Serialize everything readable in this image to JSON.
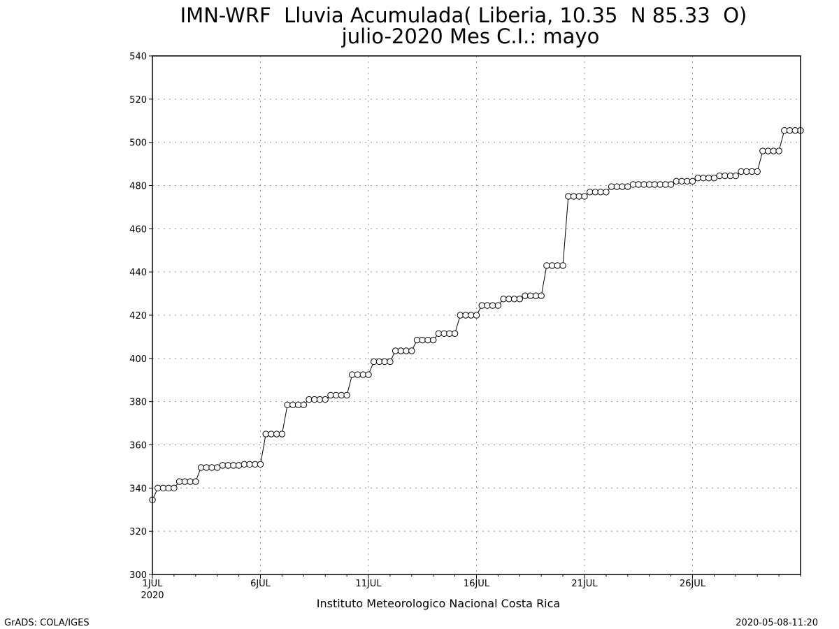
{
  "chart_data": {
    "type": "line",
    "title": "IMN-WRF  Lluvia Acumulada( Liberia, 10.35  N 85.33  O)",
    "subtitle": "julio-2020 Mes C.I.: mayo",
    "xlabel": "Instituto Meteorologico Nacional Costa Rica",
    "ylabel": "",
    "ylim": [
      300,
      540
    ],
    "yticks": [
      300,
      320,
      340,
      360,
      380,
      400,
      420,
      440,
      460,
      480,
      500,
      520,
      540
    ],
    "xlim": [
      1,
      31
    ],
    "xticks": [
      {
        "day": 1,
        "label": "1JUL",
        "sublabel": "2020"
      },
      {
        "day": 6,
        "label": "6JUL"
      },
      {
        "day": 11,
        "label": "11JUL"
      },
      {
        "day": 16,
        "label": "16JUL"
      },
      {
        "day": 21,
        "label": "21JUL"
      },
      {
        "day": 26,
        "label": "26JUL"
      }
    ],
    "grid": true,
    "marker": "open-circle",
    "x_unit": "days of July 2020, 6-hourly",
    "values": [
      334.5,
      340.0,
      340.0,
      340.0,
      340.0,
      343.0,
      343.0,
      343.0,
      343.0,
      349.5,
      349.5,
      349.5,
      349.5,
      350.5,
      350.5,
      350.5,
      350.5,
      351.0,
      351.0,
      351.0,
      351.0,
      365.0,
      365.0,
      365.0,
      365.0,
      378.5,
      378.5,
      378.5,
      378.5,
      381.0,
      381.0,
      381.0,
      381.0,
      383.0,
      383.0,
      383.0,
      383.0,
      392.5,
      392.5,
      392.5,
      392.5,
      398.5,
      398.5,
      398.5,
      398.5,
      403.5,
      403.5,
      403.5,
      403.5,
      408.5,
      408.5,
      408.5,
      408.5,
      411.5,
      411.5,
      411.5,
      411.5,
      420.0,
      420.0,
      420.0,
      420.0,
      424.5,
      424.5,
      424.5,
      424.5,
      427.5,
      427.5,
      427.5,
      427.5,
      429.0,
      429.0,
      429.0,
      429.0,
      443.0,
      443.0,
      443.0,
      443.0,
      475.0,
      475.0,
      475.0,
      475.0,
      477.0,
      477.0,
      477.0,
      477.0,
      479.5,
      479.5,
      479.5,
      479.5,
      480.5,
      480.5,
      480.5,
      480.5,
      480.5,
      480.5,
      480.5,
      480.5,
      482.0,
      482.0,
      482.0,
      482.0,
      483.5,
      483.5,
      483.5,
      483.5,
      484.5,
      484.5,
      484.5,
      484.5,
      486.5,
      486.5,
      486.5,
      486.5,
      496.0,
      496.0,
      496.0,
      496.0,
      505.5,
      505.5,
      505.5,
      505.5
    ]
  },
  "footer": {
    "left": "GrADS: COLA/IGES",
    "right": "2020-05-08-11:20"
  }
}
